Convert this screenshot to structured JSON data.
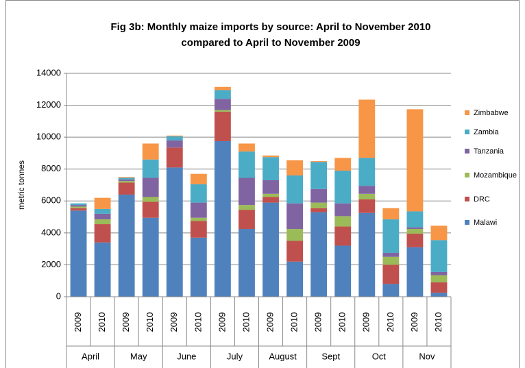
{
  "chart_data": {
    "type": "stacked_bar",
    "title": "Fig 3b: Monthly maize imports by source: April to November 2010",
    "subtitle": "compared to April to November 2009",
    "y_label": "metric tonnes",
    "categories": [
      "2009",
      "2010",
      "2009",
      "2010",
      "2009",
      "2010",
      "2009",
      "2010",
      "2009",
      "2010",
      "2009",
      "2010",
      "2009",
      "2010",
      "2009",
      "2010"
    ],
    "groups": [
      "April",
      "May",
      "June",
      "July",
      "August",
      "Sept",
      "Oct",
      "Nov"
    ],
    "ylim": [
      0,
      14000
    ],
    "yticks": [
      0,
      2000,
      4000,
      6000,
      8000,
      10000,
      12000,
      14000
    ],
    "grid": true,
    "legend": "right",
    "series": [
      {
        "name": "Malawi",
        "color": "#4f81bd",
        "values": [
          5400,
          3400,
          6400,
          4950,
          8100,
          3700,
          9750,
          4250,
          5900,
          2200,
          5300,
          3200,
          5250,
          800,
          3100,
          250
        ]
      },
      {
        "name": "DRC",
        "color": "#c0504d",
        "values": [
          150,
          1150,
          750,
          1000,
          1250,
          1050,
          1850,
          1200,
          350,
          1300,
          250,
          1200,
          850,
          1200,
          850,
          650
        ]
      },
      {
        "name": "Mozambique",
        "color": "#9bbb59",
        "values": [
          100,
          300,
          100,
          300,
          0,
          200,
          100,
          300,
          200,
          750,
          350,
          650,
          350,
          500,
          300,
          450
        ]
      },
      {
        "name": "Tanzania",
        "color": "#8064a2",
        "values": [
          100,
          350,
          100,
          1200,
          450,
          950,
          700,
          1700,
          850,
          1600,
          850,
          800,
          500,
          250,
          100,
          200
        ]
      },
      {
        "name": "Zambia",
        "color": "#4bacc6",
        "values": [
          100,
          300,
          100,
          1150,
          250,
          1150,
          550,
          1650,
          1450,
          1750,
          1700,
          2050,
          1750,
          2100,
          1000,
          2000
        ]
      },
      {
        "name": "Zimbabwe",
        "color": "#f79646",
        "values": [
          0,
          700,
          50,
          1000,
          50,
          650,
          200,
          500,
          100,
          950,
          50,
          800,
          3650,
          700,
          6400,
          900
        ]
      }
    ]
  }
}
